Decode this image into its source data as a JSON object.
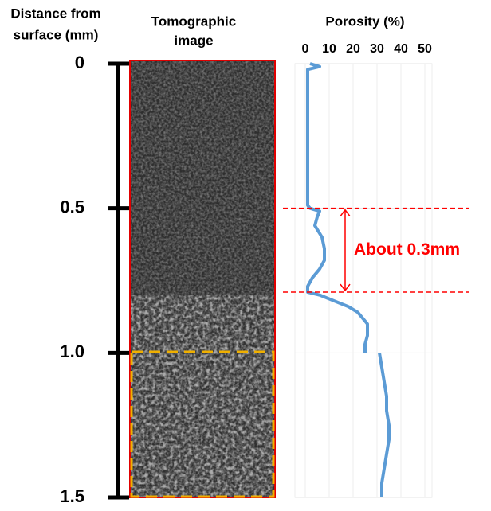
{
  "chart_data": {
    "type": "line",
    "title": "Porosity (%)",
    "depth_title": [
      "Distance from",
      "surface (mm)"
    ],
    "image_title": [
      "Tomographic",
      "image"
    ],
    "x": [
      0,
      0.01,
      0.02,
      0.05,
      0.1,
      0.2,
      0.3,
      0.4,
      0.45,
      0.49,
      0.5,
      0.51,
      0.53,
      0.56,
      0.6,
      0.64,
      0.68,
      0.71,
      0.74,
      0.77,
      0.79,
      0.8,
      0.82,
      0.84,
      0.86,
      0.88,
      0.9,
      0.94,
      0.97,
      1.0,
      1.0,
      1.0,
      1.05,
      1.1,
      1.15,
      1.2,
      1.25,
      1.3,
      1.35,
      1.4,
      1.45,
      1.5
    ],
    "values": [
      2,
      6,
      1,
      1,
      1,
      1,
      1,
      1,
      1,
      1,
      2,
      6,
      5,
      4,
      7,
      8,
      8,
      6,
      3,
      1,
      1,
      6,
      12,
      18,
      22,
      24,
      26,
      26,
      25,
      25,
      null,
      31,
      32,
      33,
      34,
      34,
      35,
      35,
      34,
      33,
      32,
      32
    ],
    "color": "#5b9bd5",
    "xlim": [
      0,
      1.5
    ],
    "xticks": [
      0,
      0.5,
      {
        "value": 1,
        "label": "1.0"
      },
      1.5
    ],
    "ylim": [
      0,
      50
    ],
    "yticks": [
      0,
      10,
      20,
      30,
      40,
      50
    ],
    "grid": true,
    "annotation": {
      "text": "About 0.3mm",
      "from": 0.5,
      "to": 0.79,
      "color": "#ff0000"
    }
  }
}
